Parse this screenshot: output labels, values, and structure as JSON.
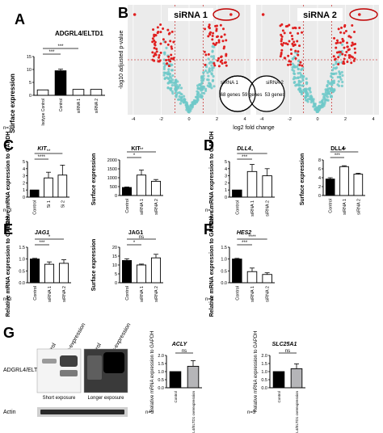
{
  "panels": {
    "A": {
      "letter": "A",
      "title": "ADGRL4/ELTD1",
      "ylabel": "Surface expression",
      "categories": [
        "Isotype Control",
        "Control",
        "siRNA 1",
        "siRNA 2"
      ],
      "values": [
        2.1,
        9.5,
        2.3,
        2.3
      ],
      "errors": [
        0,
        0.6,
        0,
        0
      ],
      "yticks": [
        "0",
        "5",
        "10",
        "15"
      ],
      "sig": [
        "***",
        "***"
      ],
      "n": "n=3"
    },
    "B": {
      "letter": "B",
      "left_title": "siRNA 1",
      "right_title": "siRNA 2",
      "xlabel": "log2 fold change",
      "ylabel": "-log10 adjusted p-value",
      "xticks_left": [
        "-4",
        "-2",
        "0",
        "2",
        "4"
      ],
      "xticks_right": [
        "-4",
        "-2",
        "0",
        "2",
        "4"
      ],
      "venn": {
        "left_label": "siRNA 1",
        "right_label": "siRNA 2",
        "left_only": "68 genes",
        "overlap": "59 genes",
        "right_only": "53 genes"
      }
    },
    "C": {
      "letter": "C",
      "gene": "KIT",
      "mrna_ylabel": "Relative mRNA expression to GAPDH",
      "mrna_categories": [
        "Control",
        "Si 1",
        "Si 2"
      ],
      "mrna_values": [
        1.0,
        2.7,
        3.1
      ],
      "mrna_errors": [
        0,
        0.8,
        1.4
      ],
      "mrna_yticks": [
        "0",
        "1",
        "2",
        "3",
        "4",
        "5"
      ],
      "mrna_sig": [
        "****",
        "**"
      ],
      "surf_title": "KIT",
      "surf_ylabel": "Surface expression",
      "surf_categories": [
        "Control",
        "siRNA 1",
        "siRNA 2"
      ],
      "surf_values": [
        450,
        1150,
        800
      ],
      "surf_errors": [
        30,
        280,
        100
      ],
      "surf_yticks": [
        "0",
        "500",
        "1000",
        "1500",
        "2000"
      ],
      "surf_sig": [
        "*",
        "**"
      ],
      "n": "n=3"
    },
    "D": {
      "letter": "D",
      "gene": "DLL4",
      "mrna_ylabel": "Relative mRNA expression to GAPDH",
      "mrna_categories": [
        "Control",
        "siRNA 1",
        "siRNA 2"
      ],
      "mrna_values": [
        1.0,
        3.6,
        3.0
      ],
      "mrna_errors": [
        0,
        1.0,
        1.0
      ],
      "mrna_yticks": [
        "0",
        "1",
        "2",
        "3",
        "4",
        "5"
      ],
      "mrna_sig": [
        "***",
        "*"
      ],
      "surf_title": "DLL4",
      "surf_ylabel": "Surface expression",
      "surf_categories": [
        "Control",
        "siRNA 1",
        "siRNA 2"
      ],
      "surf_values": [
        3.7,
        6.5,
        4.8
      ],
      "surf_errors": [
        0.3,
        0.2,
        0.2
      ],
      "surf_yticks": [
        "0",
        "2",
        "4",
        "6",
        "8"
      ],
      "surf_sig": [
        "***",
        "**"
      ],
      "n": "n=3"
    },
    "E": {
      "letter": "E",
      "gene": "JAG1",
      "mrna_ylabel": "Relative mRNA expression to GAPDH",
      "mrna_categories": [
        "Control",
        "siRNA 1",
        "siRNA 2"
      ],
      "mrna_values": [
        1.0,
        0.78,
        0.82
      ],
      "mrna_errors": [
        0.03,
        0.1,
        0.15
      ],
      "mrna_yticks": [
        "0.0",
        "0.5",
        "1.0",
        "1.5"
      ],
      "mrna_sig": [
        "***",
        "*"
      ],
      "surf_title": "JAG1",
      "surf_ylabel": "Surface expression",
      "surf_categories": [
        "Control",
        "siRNA 1",
        "siRNA 2"
      ],
      "surf_values": [
        12.5,
        10.0,
        14.0
      ],
      "surf_errors": [
        1.0,
        0.5,
        2.0
      ],
      "surf_yticks": [
        "0",
        "5",
        "10",
        "15",
        "20"
      ],
      "surf_sig": [
        "*",
        "ns"
      ],
      "n": "n=3"
    },
    "F": {
      "letter": "F",
      "gene": "HES2",
      "mrna_ylabel": "Relative mRNA expression to GAPDH",
      "mrna_categories": [
        "Control",
        "siRNA 1",
        "siRNA 2"
      ],
      "mrna_values": [
        1.0,
        0.47,
        0.35
      ],
      "mrna_errors": [
        0.03,
        0.15,
        0.07
      ],
      "mrna_yticks": [
        "0.0",
        "0.5",
        "1.0",
        "1.5"
      ],
      "mrna_sig": [
        "***",
        "****"
      ],
      "n": "n=3"
    },
    "G": {
      "letter": "G",
      "blot_lanes_a": [
        "Control",
        "Over-expression"
      ],
      "blot_lanes_b": [
        "Control",
        "Over-expression"
      ],
      "blot_label": "ADGRL4/ELTD1",
      "short_caption": "Short exposure",
      "long_caption": "Longer exposure",
      "loading_label": "Actin",
      "acly": {
        "gene": "ACLY",
        "ylabel": "Relative mRNA expression to GAPDH",
        "categories": [
          "Control",
          "ADGRL4/ELTD1 overexpression"
        ],
        "values": [
          1.0,
          1.33
        ],
        "errors": [
          0,
          0.35
        ],
        "yticks": [
          "0.0",
          "0.5",
          "1.0",
          "1.5",
          "2.0"
        ],
        "sig": "ns"
      },
      "slc": {
        "gene": "SLC25A1",
        "ylabel": "Relative mRNA expression to GAPDH",
        "categories": [
          "Control",
          "ADGRL4/ELTD1 overexpression"
        ],
        "values": [
          1.0,
          1.18
        ],
        "errors": [
          0,
          0.3
        ],
        "yticks": [
          "0.0",
          "0.5",
          "1.0",
          "1.5",
          "2.0"
        ],
        "sig": "ns"
      },
      "n": "n=3"
    }
  },
  "chart_data": [
    {
      "type": "bar",
      "title": "ADGRL4/ELTD1",
      "ylabel": "Surface expression",
      "categories": [
        "Isotype Control",
        "Control",
        "siRNA 1",
        "siRNA 2"
      ],
      "values": [
        2.1,
        9.5,
        2.3,
        2.3
      ],
      "ylim": [
        0,
        15
      ]
    },
    {
      "type": "bar",
      "title": "KIT",
      "ylabel": "Relative mRNA expression to GAPDH",
      "categories": [
        "Control",
        "Si 1",
        "Si 2"
      ],
      "values": [
        1.0,
        2.7,
        3.1
      ],
      "ylim": [
        0,
        5
      ]
    },
    {
      "type": "bar",
      "title": "KIT",
      "ylabel": "Surface expression",
      "categories": [
        "Control",
        "siRNA 1",
        "siRNA 2"
      ],
      "values": [
        450,
        1150,
        800
      ],
      "ylim": [
        0,
        2000
      ]
    },
    {
      "type": "bar",
      "title": "DLL4",
      "ylabel": "Relative mRNA expression to GAPDH",
      "categories": [
        "Control",
        "siRNA 1",
        "siRNA 2"
      ],
      "values": [
        1.0,
        3.6,
        3.0
      ],
      "ylim": [
        0,
        5
      ]
    },
    {
      "type": "bar",
      "title": "DLL4",
      "ylabel": "Surface expression",
      "categories": [
        "Control",
        "siRNA 1",
        "siRNA 2"
      ],
      "values": [
        3.7,
        6.5,
        4.8
      ],
      "ylim": [
        0,
        8
      ]
    },
    {
      "type": "bar",
      "title": "JAG1",
      "ylabel": "Relative mRNA expression to GAPDH",
      "categories": [
        "Control",
        "siRNA 1",
        "siRNA 2"
      ],
      "values": [
        1.0,
        0.78,
        0.82
      ],
      "ylim": [
        0,
        1.5
      ]
    },
    {
      "type": "bar",
      "title": "JAG1",
      "ylabel": "Surface expression",
      "categories": [
        "Control",
        "siRNA 1",
        "siRNA 2"
      ],
      "values": [
        12.5,
        10.0,
        14.0
      ],
      "ylim": [
        0,
        20
      ]
    },
    {
      "type": "bar",
      "title": "HES2",
      "ylabel": "Relative mRNA expression to GAPDH",
      "categories": [
        "Control",
        "siRNA 1",
        "siRNA 2"
      ],
      "values": [
        1.0,
        0.47,
        0.35
      ],
      "ylim": [
        0,
        1.5
      ]
    },
    {
      "type": "bar",
      "title": "ACLY",
      "ylabel": "Relative mRNA expression to GAPDH",
      "categories": [
        "Control",
        "ADGRL4/ELTD1 overexpression"
      ],
      "values": [
        1.0,
        1.33
      ],
      "ylim": [
        0,
        2
      ]
    },
    {
      "type": "bar",
      "title": "SLC25A1",
      "ylabel": "Relative mRNA expression to GAPDH",
      "categories": [
        "Control",
        "ADGRL4/ELTD1 overexpression"
      ],
      "values": [
        1.0,
        1.18
      ],
      "ylim": [
        0,
        2
      ]
    },
    {
      "type": "scatter",
      "title": "siRNA 1",
      "xlabel": "log2 fold change",
      "ylabel": "-log10 adjusted p-value",
      "xlim": [
        -4,
        4
      ]
    },
    {
      "type": "scatter",
      "title": "siRNA 2",
      "xlabel": "log2 fold change",
      "ylabel": "-log10 adjusted p-value",
      "xlim": [
        -4,
        4
      ]
    }
  ]
}
